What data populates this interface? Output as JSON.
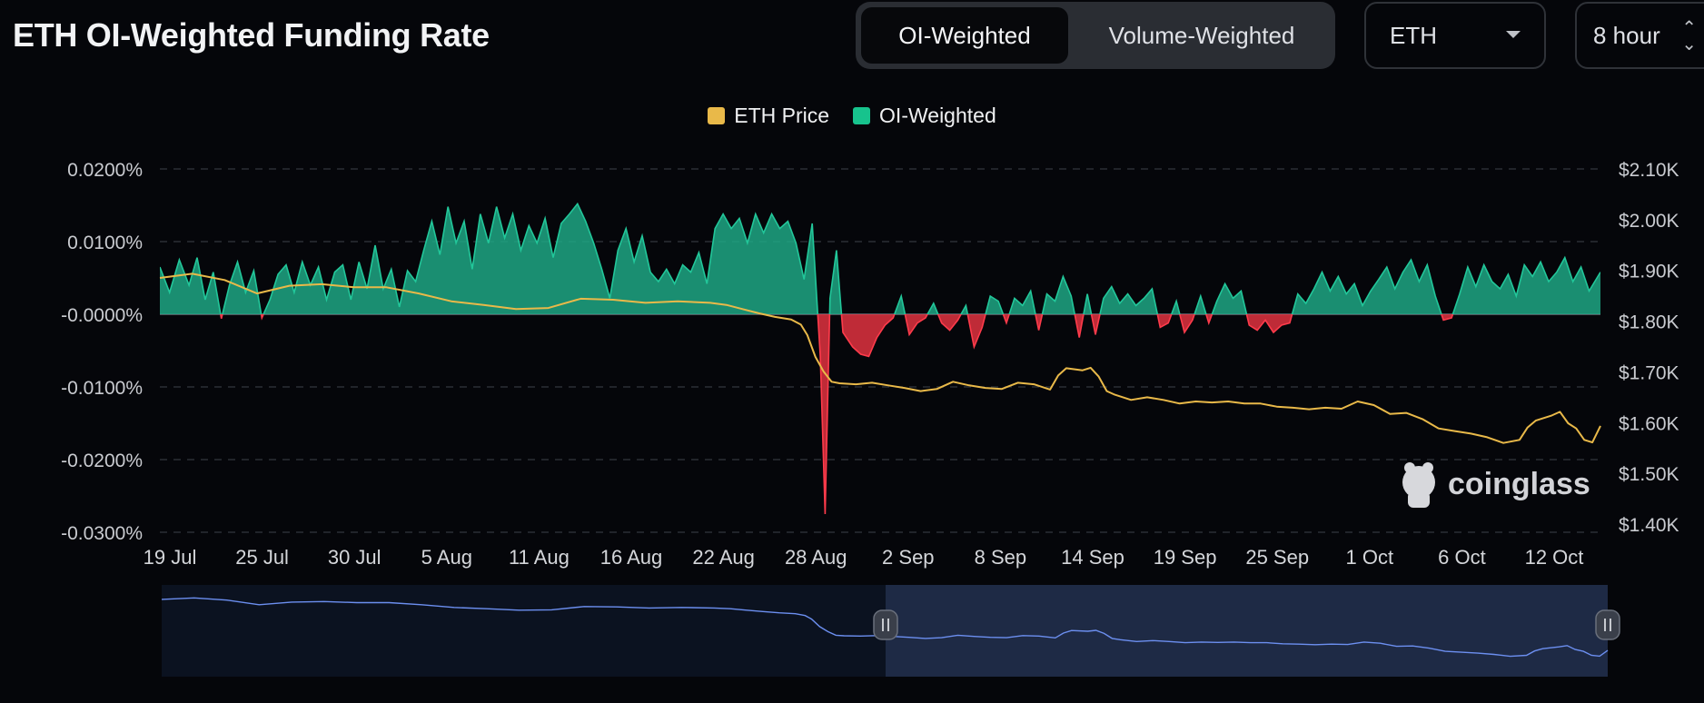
{
  "page": {
    "title": "ETH OI-Weighted Funding Rate"
  },
  "controls": {
    "weighting_options": [
      "OI-Weighted",
      "Volume-Weighted"
    ],
    "selected_weighting": "OI-Weighted",
    "symbol": "ETH",
    "interval": "8 hour"
  },
  "watermark": "coinglass",
  "colors": {
    "price": "#e9b949",
    "positive": "#1fa784",
    "negative": "#e0323f",
    "brush_line": "#6c8ff0",
    "background": "#05060a"
  },
  "chart_data": {
    "type": "area",
    "legend": [
      "ETH Price",
      "OI-Weighted"
    ],
    "grid": true,
    "legend_position": "top-center",
    "x_ticks": [
      "19 Jul",
      "25 Jul",
      "30 Jul",
      "5 Aug",
      "11 Aug",
      "16 Aug",
      "22 Aug",
      "28 Aug",
      "2 Sep",
      "8 Sep",
      "14 Sep",
      "19 Sep",
      "25 Sep",
      "1 Oct",
      "6 Oct",
      "12 Oct"
    ],
    "left_axis": {
      "ticks": [
        "0.0200%",
        "0.0100%",
        "-0.0000%",
        "-0.0100%",
        "-0.0200%",
        "-0.0300%"
      ],
      "range": [
        -0.03,
        0.02
      ],
      "unit": "%"
    },
    "right_axis": {
      "ticks": [
        "$2.10K",
        "$2.00K",
        "$1.90K",
        "$1.80K",
        "$1.70K",
        "$1.60K",
        "$1.50K",
        "$1.40K"
      ],
      "range": [
        1400,
        2100
      ],
      "unit": "USD"
    },
    "x_range_days": [
      0,
      89
    ],
    "series": [
      {
        "name": "OI-Weighted",
        "axis": "left",
        "points": [
          [
            0,
            0.0065
          ],
          [
            0.6,
            0.003
          ],
          [
            1.2,
            0.0075
          ],
          [
            1.8,
            0.004
          ],
          [
            2.3,
            0.0078
          ],
          [
            2.8,
            0.002
          ],
          [
            3.3,
            0.0058
          ],
          [
            3.8,
            -0.0006
          ],
          [
            4.3,
            0.004
          ],
          [
            4.8,
            0.0072
          ],
          [
            5.3,
            0.003
          ],
          [
            5.8,
            0.006
          ],
          [
            6.3,
            -0.0005
          ],
          [
            6.8,
            0.002
          ],
          [
            7.3,
            0.0055
          ],
          [
            7.8,
            0.0068
          ],
          [
            8.3,
            0.003
          ],
          [
            8.8,
            0.0072
          ],
          [
            9.3,
            0.004
          ],
          [
            9.8,
            0.0065
          ],
          [
            10.3,
            0.002
          ],
          [
            10.8,
            0.0058
          ],
          [
            11.3,
            0.0068
          ],
          [
            11.8,
            0.002
          ],
          [
            12.3,
            0.0072
          ],
          [
            12.8,
            0.0035
          ],
          [
            13.3,
            0.0095
          ],
          [
            13.8,
            0.0035
          ],
          [
            14.3,
            0.0062
          ],
          [
            14.8,
            0.001
          ],
          [
            15.3,
            0.006
          ],
          [
            15.8,
            0.0045
          ],
          [
            16.3,
            0.0088
          ],
          [
            16.8,
            0.0128
          ],
          [
            17.3,
            0.0082
          ],
          [
            17.8,
            0.0148
          ],
          [
            18.3,
            0.0098
          ],
          [
            18.8,
            0.0128
          ],
          [
            19.3,
            0.0062
          ],
          [
            19.8,
            0.0138
          ],
          [
            20.3,
            0.0098
          ],
          [
            20.8,
            0.0148
          ],
          [
            21.3,
            0.0105
          ],
          [
            21.8,
            0.0138
          ],
          [
            22.3,
            0.0088
          ],
          [
            22.8,
            0.0122
          ],
          [
            23.3,
            0.0098
          ],
          [
            23.8,
            0.0132
          ],
          [
            24.3,
            0.0078
          ],
          [
            24.8,
            0.0125
          ],
          [
            25.3,
            0.0138
          ],
          [
            25.8,
            0.0152
          ],
          [
            26.3,
            0.0128
          ],
          [
            26.8,
            0.0098
          ],
          [
            27.3,
            0.0062
          ],
          [
            27.8,
            0.0022
          ],
          [
            28.3,
            0.0088
          ],
          [
            28.8,
            0.0118
          ],
          [
            29.3,
            0.0072
          ],
          [
            29.8,
            0.0108
          ],
          [
            30.3,
            0.0058
          ],
          [
            30.8,
            0.0045
          ],
          [
            31.3,
            0.0062
          ],
          [
            31.8,
            0.0042
          ],
          [
            32.3,
            0.0068
          ],
          [
            32.8,
            0.0058
          ],
          [
            33.3,
            0.0085
          ],
          [
            33.8,
            0.0042
          ],
          [
            34.3,
            0.0118
          ],
          [
            34.8,
            0.0138
          ],
          [
            35.3,
            0.0118
          ],
          [
            35.8,
            0.0132
          ],
          [
            36.3,
            0.0098
          ],
          [
            36.8,
            0.0138
          ],
          [
            37.3,
            0.0112
          ],
          [
            37.8,
            0.0138
          ],
          [
            38.3,
            0.0118
          ],
          [
            38.8,
            0.0128
          ],
          [
            39.3,
            0.0098
          ],
          [
            39.8,
            0.0048
          ],
          [
            40.3,
            0.0125
          ],
          [
            40.8,
            -0.0058
          ],
          [
            41.1,
            -0.0275
          ],
          [
            41.4,
            0.0022
          ],
          [
            41.8,
            0.0088
          ],
          [
            42.2,
            -0.0025
          ],
          [
            42.8,
            -0.0045
          ],
          [
            43.3,
            -0.0055
          ],
          [
            43.8,
            -0.0058
          ],
          [
            44.3,
            -0.0032
          ],
          [
            44.8,
            -0.0015
          ],
          [
            45.3,
            -0.0005
          ],
          [
            45.8,
            0.0025
          ],
          [
            46.3,
            -0.0028
          ],
          [
            46.8,
            -0.0012
          ],
          [
            47.3,
            -0.0005
          ],
          [
            47.8,
            0.0015
          ],
          [
            48.3,
            -0.0012
          ],
          [
            48.8,
            -0.0022
          ],
          [
            49.3,
            -0.0008
          ],
          [
            49.8,
            0.0012
          ],
          [
            50.3,
            -0.0045
          ],
          [
            50.8,
            -0.0018
          ],
          [
            51.3,
            0.0025
          ],
          [
            51.8,
            0.0018
          ],
          [
            52.3,
            -0.0012
          ],
          [
            52.8,
            0.0022
          ],
          [
            53.3,
            0.0012
          ],
          [
            53.8,
            0.0032
          ],
          [
            54.3,
            -0.0022
          ],
          [
            54.8,
            0.0028
          ],
          [
            55.3,
            0.0018
          ],
          [
            55.8,
            0.0052
          ],
          [
            56.3,
            0.0025
          ],
          [
            56.8,
            -0.0032
          ],
          [
            57.3,
            0.0028
          ],
          [
            57.8,
            -0.0028
          ],
          [
            58.3,
            0.0022
          ],
          [
            58.8,
            0.0038
          ],
          [
            59.3,
            0.0015
          ],
          [
            59.8,
            0.0028
          ],
          [
            60.3,
            0.0012
          ],
          [
            60.8,
            0.0022
          ],
          [
            61.3,
            0.0035
          ],
          [
            61.8,
            -0.0018
          ],
          [
            62.3,
            -0.0012
          ],
          [
            62.8,
            0.0018
          ],
          [
            63.3,
            -0.0025
          ],
          [
            63.8,
            -0.0008
          ],
          [
            64.3,
            0.0025
          ],
          [
            64.8,
            -0.0012
          ],
          [
            65.3,
            0.0018
          ],
          [
            65.8,
            0.0042
          ],
          [
            66.3,
            0.0022
          ],
          [
            66.8,
            0.0032
          ],
          [
            67.3,
            -0.0015
          ],
          [
            67.8,
            -0.0022
          ],
          [
            68.3,
            -0.0008
          ],
          [
            68.8,
            -0.0025
          ],
          [
            69.3,
            -0.0015
          ],
          [
            69.8,
            -0.0012
          ],
          [
            70.3,
            0.0028
          ],
          [
            70.8,
            0.0015
          ],
          [
            71.3,
            0.0035
          ],
          [
            71.8,
            0.0058
          ],
          [
            72.3,
            0.0032
          ],
          [
            72.8,
            0.0052
          ],
          [
            73.3,
            0.0028
          ],
          [
            73.8,
            0.0042
          ],
          [
            74.3,
            0.0012
          ],
          [
            74.8,
            0.0032
          ],
          [
            75.3,
            0.0048
          ],
          [
            75.8,
            0.0065
          ],
          [
            76.3,
            0.0035
          ],
          [
            76.8,
            0.0058
          ],
          [
            77.3,
            0.0075
          ],
          [
            77.8,
            0.0045
          ],
          [
            78.3,
            0.0068
          ],
          [
            78.8,
            0.0025
          ],
          [
            79.3,
            -0.0008
          ],
          [
            79.8,
            -0.0005
          ],
          [
            80.3,
            0.0028
          ],
          [
            80.8,
            0.0065
          ],
          [
            81.3,
            0.0038
          ],
          [
            81.8,
            0.0068
          ],
          [
            82.3,
            0.0045
          ],
          [
            82.8,
            0.0035
          ],
          [
            83.3,
            0.0055
          ],
          [
            83.8,
            0.0025
          ],
          [
            84.3,
            0.0068
          ],
          [
            84.8,
            0.0052
          ],
          [
            85.3,
            0.0072
          ],
          [
            85.8,
            0.0045
          ],
          [
            86.3,
            0.0058
          ],
          [
            86.8,
            0.0078
          ],
          [
            87.3,
            0.0045
          ],
          [
            87.8,
            0.0065
          ],
          [
            88.3,
            0.0032
          ],
          [
            89,
            0.0058
          ]
        ]
      },
      {
        "name": "ETH Price",
        "axis": "right",
        "points": [
          [
            0,
            1890
          ],
          [
            2,
            1898
          ],
          [
            4,
            1886
          ],
          [
            6,
            1860
          ],
          [
            8,
            1875
          ],
          [
            10,
            1878
          ],
          [
            12,
            1872
          ],
          [
            14,
            1872
          ],
          [
            16,
            1860
          ],
          [
            18,
            1845
          ],
          [
            20,
            1838
          ],
          [
            22,
            1830
          ],
          [
            24,
            1832
          ],
          [
            26,
            1850
          ],
          [
            28,
            1848
          ],
          [
            30,
            1842
          ],
          [
            32,
            1845
          ],
          [
            34,
            1842
          ],
          [
            35,
            1838
          ],
          [
            36,
            1830
          ],
          [
            37,
            1822
          ],
          [
            38,
            1815
          ],
          [
            39,
            1810
          ],
          [
            39.6,
            1800
          ],
          [
            40,
            1780
          ],
          [
            40.5,
            1738
          ],
          [
            41,
            1710
          ],
          [
            41.5,
            1690
          ],
          [
            42,
            1687
          ],
          [
            43,
            1685
          ],
          [
            44,
            1688
          ],
          [
            45,
            1683
          ],
          [
            46,
            1678
          ],
          [
            47,
            1672
          ],
          [
            48,
            1676
          ],
          [
            49,
            1690
          ],
          [
            50,
            1683
          ],
          [
            51,
            1678
          ],
          [
            52,
            1676
          ],
          [
            53,
            1688
          ],
          [
            54,
            1685
          ],
          [
            55,
            1675
          ],
          [
            55.5,
            1702
          ],
          [
            56,
            1716
          ],
          [
            57,
            1712
          ],
          [
            57.5,
            1717
          ],
          [
            58,
            1700
          ],
          [
            58.5,
            1672
          ],
          [
            59,
            1665
          ],
          [
            60,
            1655
          ],
          [
            61,
            1660
          ],
          [
            62,
            1655
          ],
          [
            63,
            1648
          ],
          [
            64,
            1652
          ],
          [
            65,
            1650
          ],
          [
            66,
            1652
          ],
          [
            67,
            1648
          ],
          [
            68,
            1648
          ],
          [
            69,
            1642
          ],
          [
            70,
            1640
          ],
          [
            71,
            1637
          ],
          [
            72,
            1640
          ],
          [
            73,
            1638
          ],
          [
            74,
            1652
          ],
          [
            75,
            1645
          ],
          [
            76,
            1628
          ],
          [
            77,
            1630
          ],
          [
            78,
            1618
          ],
          [
            79,
            1600
          ],
          [
            80,
            1595
          ],
          [
            81,
            1590
          ],
          [
            82,
            1583
          ],
          [
            83,
            1572
          ],
          [
            84,
            1578
          ],
          [
            84.5,
            1602
          ],
          [
            85,
            1615
          ],
          [
            86,
            1625
          ],
          [
            86.5,
            1632
          ],
          [
            87,
            1610
          ],
          [
            87.5,
            1600
          ],
          [
            88,
            1578
          ],
          [
            88.5,
            1573
          ],
          [
            89,
            1605
          ]
        ]
      }
    ]
  }
}
